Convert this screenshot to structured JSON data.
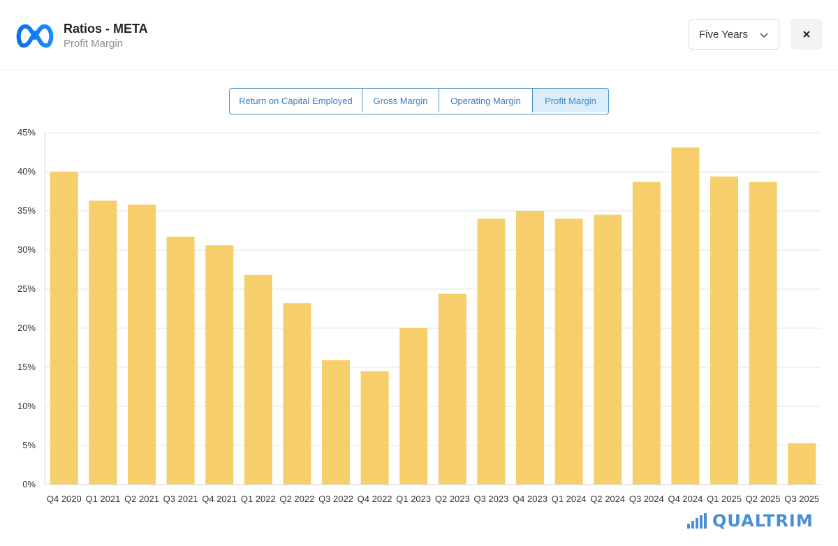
{
  "header": {
    "title": "Ratios - META",
    "subtitle": "Profit Margin",
    "period_selected": "Five Years"
  },
  "icons": {
    "logo": "meta-logo-icon",
    "dropdown": "chevron-down-icon",
    "close": "close-icon",
    "brand": "bar-chart-icon"
  },
  "tabs": [
    {
      "label": "Return on Capital Employed",
      "active": false
    },
    {
      "label": "Gross Margin",
      "active": false
    },
    {
      "label": "Operating Margin",
      "active": false
    },
    {
      "label": "Profit Margin",
      "active": true
    }
  ],
  "colors": {
    "bar": "#f6cf6c",
    "accent": "#4a90c8",
    "brand": "#4a8fd4"
  },
  "brand": {
    "name": "QUALTRIM"
  },
  "chart_data": {
    "type": "bar",
    "title": "",
    "xlabel": "",
    "ylabel": "",
    "categories": [
      "Q4 2020",
      "Q1 2021",
      "Q2 2021",
      "Q3 2021",
      "Q4 2021",
      "Q1 2022",
      "Q2 2022",
      "Q3 2022",
      "Q4 2022",
      "Q1 2023",
      "Q2 2023",
      "Q3 2023",
      "Q4 2023",
      "Q1 2024",
      "Q2 2024",
      "Q3 2024",
      "Q4 2024",
      "Q1 2025",
      "Q2 2025",
      "Q3 2025"
    ],
    "values": [
      40.0,
      36.3,
      35.8,
      31.7,
      30.6,
      26.8,
      23.2,
      15.9,
      14.5,
      20.0,
      24.4,
      34.0,
      35.0,
      34.0,
      34.5,
      38.7,
      43.1,
      39.4,
      38.7,
      5.3
    ],
    "ylim": [
      0,
      45
    ],
    "yticks": [
      0,
      5,
      10,
      15,
      20,
      25,
      30,
      35,
      40,
      45
    ],
    "ytick_suffix": "%",
    "grid": true,
    "legend": "none"
  }
}
